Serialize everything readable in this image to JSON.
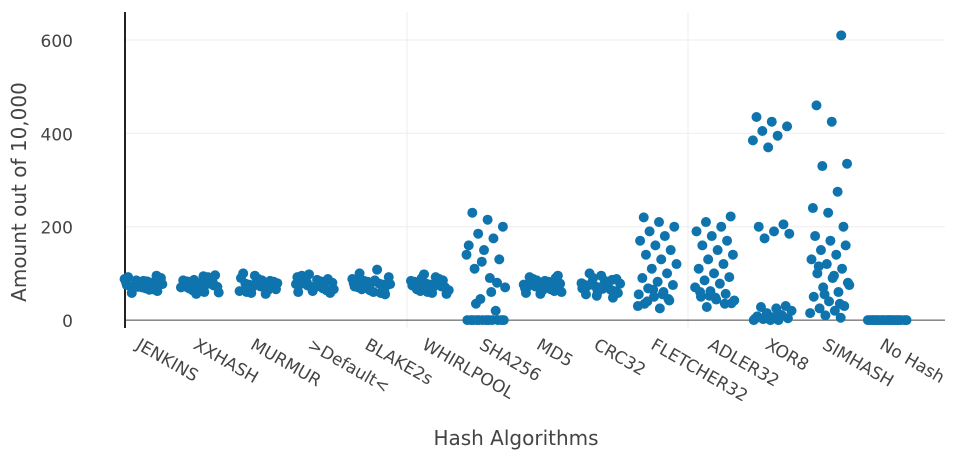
{
  "chart_data": {
    "type": "strip",
    "x_label": "Hash Algorithms",
    "y_label": "Amount out of 10,000",
    "categories": [
      "JENKINS",
      "XXHASH",
      "MURMUR",
      ">Default<",
      "BLAKE2s",
      "WHIRLPOOL",
      "SHA256",
      "MD5",
      "CRC32",
      "FLETCHER32",
      "ADLER32",
      "XOR8",
      "SIMHASH",
      "No Hash"
    ],
    "values": [
      [
        62,
        70,
        75,
        80,
        85,
        90,
        68,
        72,
        78,
        82,
        88,
        65,
        74,
        79,
        84,
        92,
        66,
        71,
        77,
        83,
        58,
        95,
        73,
        81
      ],
      [
        60,
        68,
        74,
        79,
        85,
        92,
        64,
        71,
        77,
        83,
        89,
        56,
        70,
        76,
        82,
        96,
        63,
        72,
        78,
        86,
        59,
        94,
        75,
        80
      ],
      [
        58,
        66,
        72,
        78,
        84,
        95,
        62,
        70,
        76,
        82,
        88,
        100,
        64,
        71,
        79,
        85,
        60,
        74,
        80,
        90,
        56,
        68,
        77,
        83
      ],
      [
        60,
        68,
        74,
        80,
        86,
        95,
        64,
        71,
        77,
        83,
        90,
        58,
        70,
        76,
        82,
        98,
        66,
        73,
        79,
        88,
        62,
        92,
        75,
        81
      ],
      [
        55,
        64,
        72,
        78,
        84,
        92,
        60,
        70,
        76,
        82,
        88,
        108,
        66,
        74,
        80,
        86,
        58,
        69,
        77,
        85,
        100,
        62,
        73,
        79
      ],
      [
        58,
        66,
        72,
        78,
        84,
        92,
        62,
        70,
        76,
        82,
        88,
        98,
        64,
        71,
        79,
        85,
        60,
        74,
        80,
        90,
        56,
        68,
        77,
        83
      ],
      [
        0,
        0,
        0,
        0,
        0,
        0,
        0,
        0,
        0,
        0,
        0,
        0,
        20,
        45,
        70,
        90,
        110,
        130,
        150,
        160,
        175,
        185,
        200,
        215,
        230,
        80,
        125,
        140,
        60,
        35
      ],
      [
        58,
        66,
        72,
        78,
        84,
        92,
        62,
        70,
        76,
        82,
        88,
        95,
        64,
        71,
        79,
        85,
        60,
        74,
        80,
        90,
        56,
        68,
        77,
        83
      ],
      [
        48,
        60,
        68,
        74,
        80,
        88,
        95,
        55,
        65,
        72,
        78,
        84,
        100,
        62,
        70,
        76,
        82,
        90,
        58,
        67,
        73,
        86,
        52,
        79
      ],
      [
        25,
        35,
        42,
        50,
        55,
        60,
        68,
        75,
        82,
        90,
        100,
        110,
        120,
        130,
        140,
        150,
        160,
        170,
        180,
        190,
        200,
        210,
        220,
        45,
        65,
        30,
        55,
        40
      ],
      [
        28,
        36,
        44,
        50,
        56,
        62,
        70,
        78,
        85,
        92,
        100,
        110,
        120,
        130,
        140,
        150,
        160,
        170,
        180,
        190,
        200,
        210,
        222,
        48,
        60,
        35,
        52,
        42
      ],
      [
        0,
        0,
        2,
        4,
        6,
        8,
        10,
        15,
        20,
        25,
        28,
        30,
        0,
        3,
        12,
        175,
        185,
        190,
        200,
        205,
        370,
        385,
        395,
        405,
        415,
        425,
        435
      ],
      [
        5,
        10,
        15,
        20,
        25,
        30,
        40,
        50,
        60,
        70,
        80,
        90,
        100,
        110,
        120,
        130,
        140,
        150,
        160,
        170,
        180,
        35,
        55,
        75,
        95,
        115,
        200,
        230,
        240,
        275,
        330,
        335,
        425,
        460,
        610
      ],
      [
        0,
        0,
        0,
        0,
        0,
        0,
        0,
        0,
        0,
        0,
        0,
        0,
        0,
        0,
        0,
        0,
        0,
        0,
        0,
        0
      ]
    ],
    "color": "#0f74ad",
    "ylim": [
      -17,
      660
    ],
    "yticks": [
      0,
      200,
      400,
      600
    ],
    "grid": true
  }
}
